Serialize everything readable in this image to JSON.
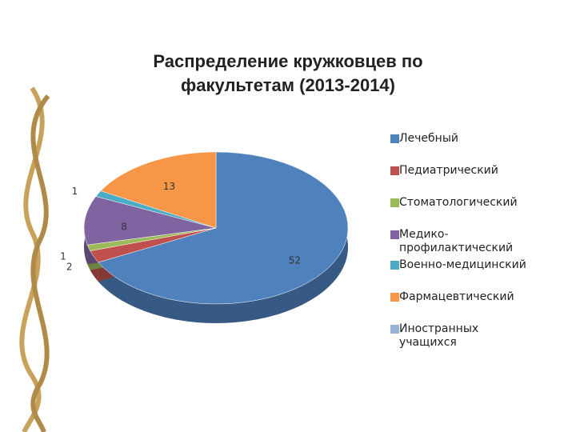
{
  "chart_data": {
    "type": "pie",
    "title": "Распределение кружковцев по факультетам (2013-2014)",
    "categories": [
      "Лечебный",
      "Педиатрический",
      "Стоматологический",
      "Медико-профилактический",
      "Военно-медицинский",
      "Фармацевтический",
      "Иностранных учащихся"
    ],
    "values": [
      52,
      2,
      1,
      8,
      1,
      13,
      null
    ],
    "colors": [
      "#4f81bd",
      "#c0504d",
      "#9bbb59",
      "#8064a2",
      "#4bacc6",
      "#f79646",
      "#95b3d7"
    ],
    "legend": "right"
  }
}
